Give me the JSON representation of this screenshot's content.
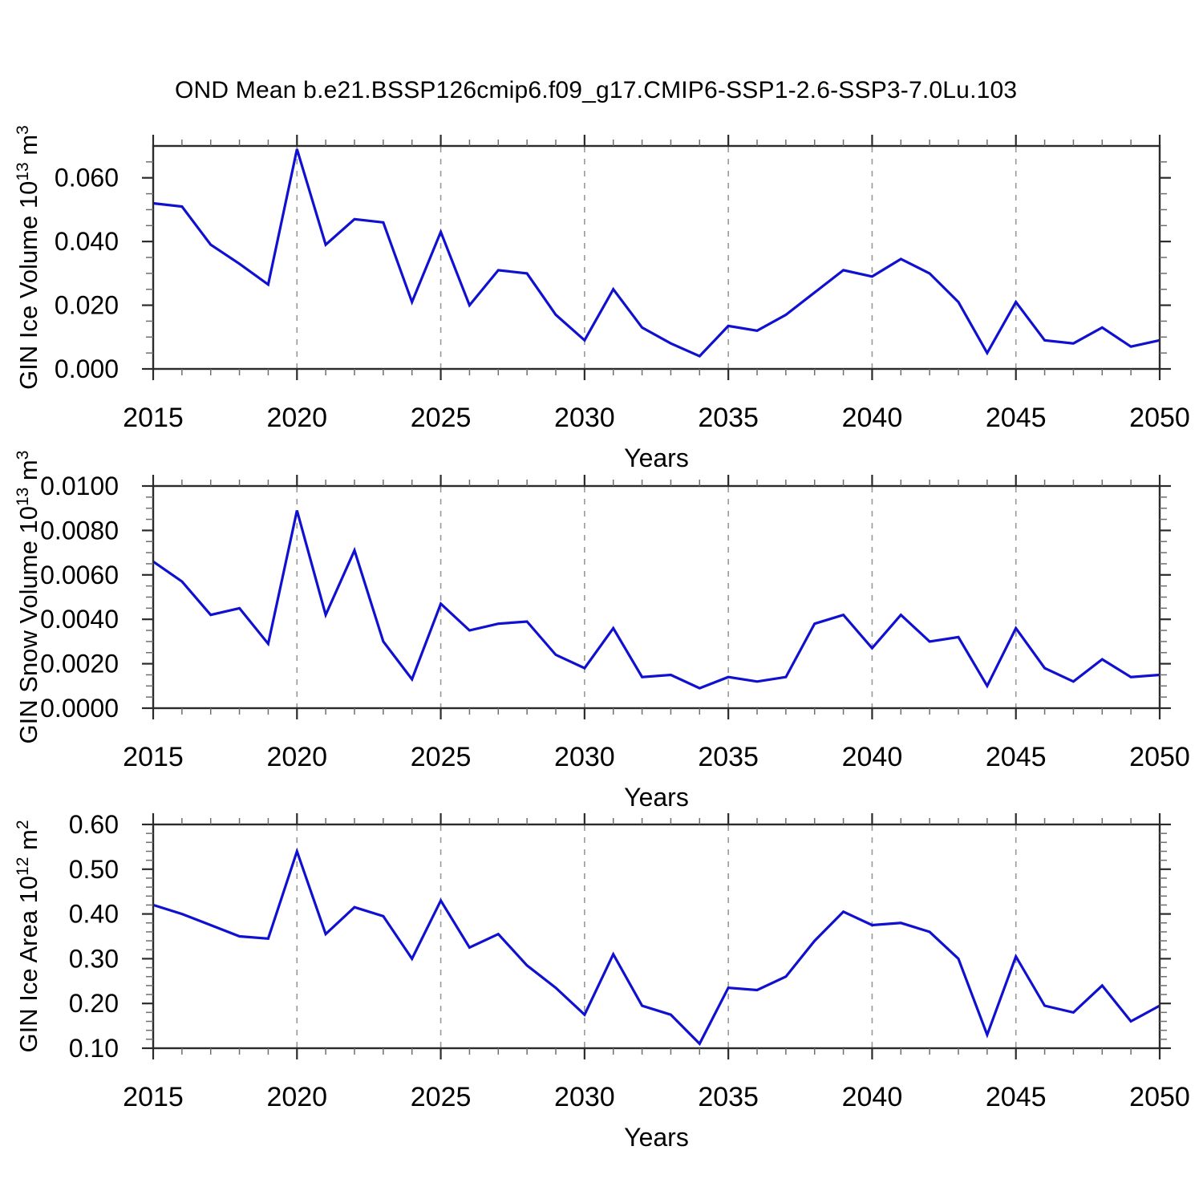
{
  "title": "OND Mean b.e21.BSSP126cmip6.f09_g17.CMIP6-SSP1-2.6-SSP3-7.0Lu.103",
  "colors": {
    "series": "#1010d0",
    "grid": "#999999",
    "axis": "#2b2b2b",
    "minor_tick": "#6e6e6e",
    "text": "#000000",
    "background": "#ffffff"
  },
  "chart_data": [
    {
      "type": "line",
      "name": "GIN Ice Volume",
      "ylabel": "GIN Ice Volume 10¹³ m³",
      "ylabel_parts": [
        {
          "t": "GIN Ice Volume 10"
        },
        {
          "t": "13",
          "sup": true
        },
        {
          "t": " m"
        },
        {
          "t": "3",
          "sup": true
        }
      ],
      "xlabel": "Years",
      "x": [
        2015,
        2016,
        2017,
        2018,
        2019,
        2020,
        2021,
        2022,
        2023,
        2024,
        2025,
        2026,
        2027,
        2028,
        2029,
        2030,
        2031,
        2032,
        2033,
        2034,
        2035,
        2036,
        2037,
        2038,
        2039,
        2040,
        2041,
        2042,
        2043,
        2044,
        2045,
        2046,
        2047,
        2048,
        2049,
        2050
      ],
      "values": [
        0.052,
        0.051,
        0.039,
        0.033,
        0.0265,
        0.069,
        0.039,
        0.047,
        0.046,
        0.021,
        0.043,
        0.02,
        0.031,
        0.03,
        0.017,
        0.009,
        0.025,
        0.013,
        0.008,
        0.004,
        0.0135,
        0.012,
        0.017,
        0.024,
        0.031,
        0.029,
        0.0345,
        0.03,
        0.021,
        0.005,
        0.021,
        0.009,
        0.008,
        0.013,
        0.007,
        0.009
      ],
      "xlim": [
        2015,
        2050
      ],
      "ylim": [
        0.0,
        0.07
      ],
      "xticks": [
        2015,
        2020,
        2025,
        2030,
        2035,
        2040,
        2045,
        2050
      ],
      "xtick_labels": [
        "2015",
        "2020",
        "2025",
        "2030",
        "2035",
        "2040",
        "2045",
        "2050"
      ],
      "xminor_step": 1,
      "ytick_values": [
        0.0,
        0.02,
        0.04,
        0.06
      ],
      "ytick_labels": [
        "0.000",
        "0.020",
        "0.040",
        "0.060"
      ],
      "yminor_step": 0.005,
      "grid_x": [
        2020,
        2025,
        2030,
        2035,
        2040,
        2045
      ],
      "grid_style": "dashed"
    },
    {
      "type": "line",
      "name": "GIN Snow Volume",
      "ylabel": "GIN Snow Volume 10¹³ m³",
      "ylabel_parts": [
        {
          "t": "GIN Snow Volume 10"
        },
        {
          "t": "13",
          "sup": true
        },
        {
          "t": " m"
        },
        {
          "t": "3",
          "sup": true
        }
      ],
      "xlabel": "Years",
      "x": [
        2015,
        2016,
        2017,
        2018,
        2019,
        2020,
        2021,
        2022,
        2023,
        2024,
        2025,
        2026,
        2027,
        2028,
        2029,
        2030,
        2031,
        2032,
        2033,
        2034,
        2035,
        2036,
        2037,
        2038,
        2039,
        2040,
        2041,
        2042,
        2043,
        2044,
        2045,
        2046,
        2047,
        2048,
        2049,
        2050
      ],
      "values": [
        0.0066,
        0.0057,
        0.0042,
        0.0045,
        0.0029,
        0.0089,
        0.0042,
        0.0071,
        0.003,
        0.0013,
        0.0047,
        0.0035,
        0.0038,
        0.0039,
        0.0024,
        0.0018,
        0.0036,
        0.0014,
        0.0015,
        0.0009,
        0.0014,
        0.0012,
        0.0014,
        0.0038,
        0.0042,
        0.0027,
        0.0042,
        0.003,
        0.0032,
        0.001,
        0.0036,
        0.0018,
        0.0012,
        0.0022,
        0.0014,
        0.0015
      ],
      "xlim": [
        2015,
        2050
      ],
      "ylim": [
        0.0,
        0.01
      ],
      "xticks": [
        2015,
        2020,
        2025,
        2030,
        2035,
        2040,
        2045,
        2050
      ],
      "xtick_labels": [
        "2015",
        "2020",
        "2025",
        "2030",
        "2035",
        "2040",
        "2045",
        "2050"
      ],
      "xminor_step": 1,
      "ytick_values": [
        0.0,
        0.002,
        0.004,
        0.006,
        0.008,
        0.01
      ],
      "ytick_labels": [
        "0.0000",
        "0.0020",
        "0.0040",
        "0.0060",
        "0.0080",
        "0.0100"
      ],
      "yminor_step": 0.0005,
      "grid_x": [
        2020,
        2025,
        2030,
        2035,
        2040,
        2045
      ],
      "grid_style": "dashed"
    },
    {
      "type": "line",
      "name": "GIN Ice Area",
      "ylabel": "GIN Ice Area 10¹² m²",
      "ylabel_parts": [
        {
          "t": "GIN Ice Area 10"
        },
        {
          "t": "12",
          "sup": true
        },
        {
          "t": " m"
        },
        {
          "t": "2",
          "sup": true
        }
      ],
      "xlabel": "Years",
      "x": [
        2015,
        2016,
        2017,
        2018,
        2019,
        2020,
        2021,
        2022,
        2023,
        2024,
        2025,
        2026,
        2027,
        2028,
        2029,
        2030,
        2031,
        2032,
        2033,
        2034,
        2035,
        2036,
        2037,
        2038,
        2039,
        2040,
        2041,
        2042,
        2043,
        2044,
        2045,
        2046,
        2047,
        2048,
        2049,
        2050
      ],
      "values": [
        0.42,
        0.4,
        0.375,
        0.35,
        0.345,
        0.54,
        0.355,
        0.415,
        0.395,
        0.3,
        0.43,
        0.325,
        0.355,
        0.285,
        0.235,
        0.175,
        0.31,
        0.195,
        0.175,
        0.11,
        0.235,
        0.23,
        0.26,
        0.34,
        0.405,
        0.375,
        0.38,
        0.36,
        0.3,
        0.13,
        0.305,
        0.195,
        0.18,
        0.24,
        0.16,
        0.195
      ],
      "xlim": [
        2015,
        2050
      ],
      "ylim": [
        0.1,
        0.6
      ],
      "xticks": [
        2015,
        2020,
        2025,
        2030,
        2035,
        2040,
        2045,
        2050
      ],
      "xtick_labels": [
        "2015",
        "2020",
        "2025",
        "2030",
        "2035",
        "2040",
        "2045",
        "2050"
      ],
      "xminor_step": 1,
      "ytick_values": [
        0.1,
        0.2,
        0.3,
        0.4,
        0.5,
        0.6
      ],
      "ytick_labels": [
        "0.10",
        "0.20",
        "0.30",
        "0.40",
        "0.50",
        "0.60"
      ],
      "yminor_step": 0.02,
      "grid_x": [
        2020,
        2025,
        2030,
        2035,
        2040,
        2045
      ],
      "grid_style": "dashed"
    }
  ]
}
